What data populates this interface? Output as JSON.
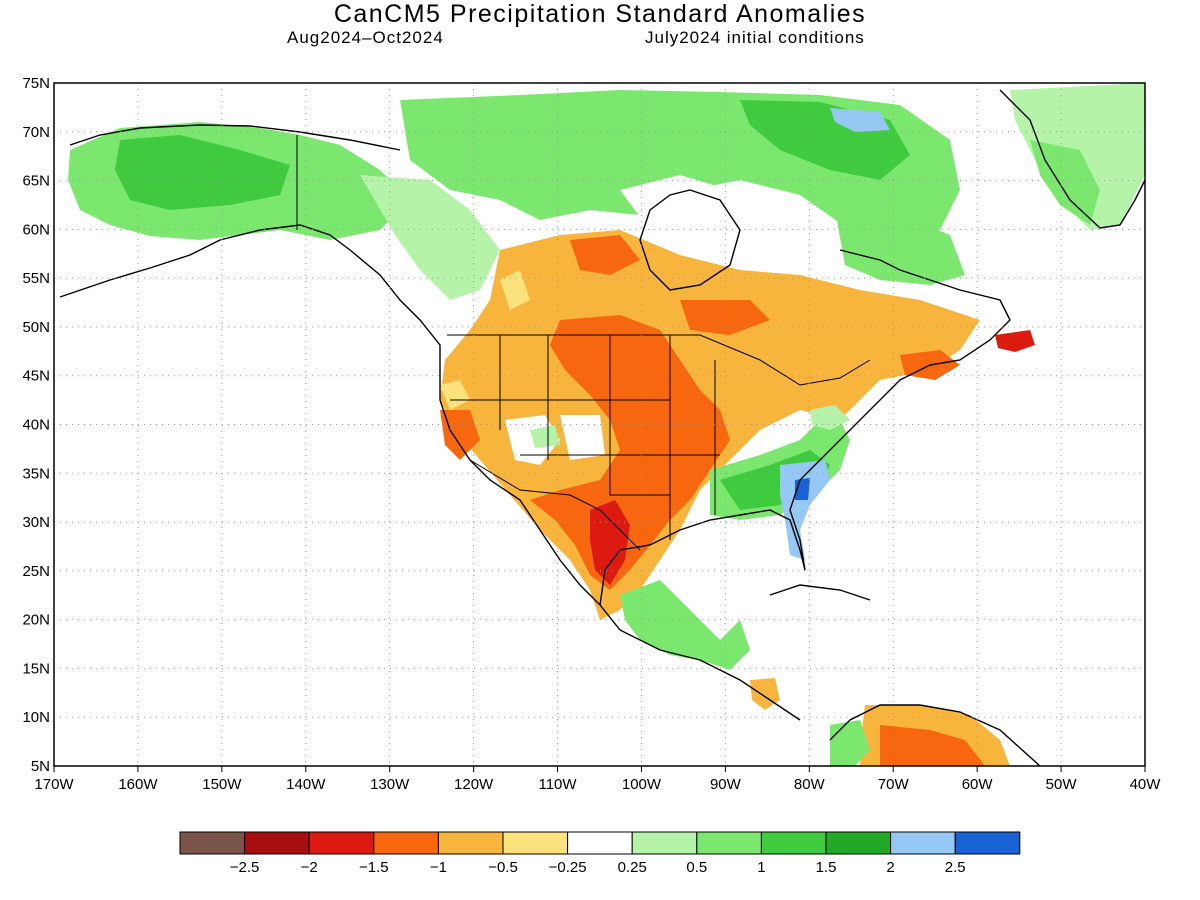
{
  "title": "CanCM5 Precipitation Standard Anomalies",
  "period": "Aug2024–Oct2024",
  "initial_conditions": "July2024 initial conditions",
  "map": {
    "projection": "lat-lon",
    "lon_range": [
      -170,
      -40
    ],
    "lat_range": [
      5,
      75
    ],
    "gridlines": "dotted",
    "lat_ticks": [
      "75N",
      "70N",
      "65N",
      "60N",
      "55N",
      "50N",
      "45N",
      "40N",
      "35N",
      "30N",
      "25N",
      "20N",
      "15N",
      "10N",
      "5N"
    ],
    "lon_ticks": [
      "170W",
      "160W",
      "150W",
      "140W",
      "130W",
      "120W",
      "110W",
      "100W",
      "90W",
      "80W",
      "70W",
      "60W",
      "50W",
      "40W"
    ]
  },
  "colorbar": {
    "colors": [
      "#7b5549",
      "#a50f0f",
      "#dc1a0f",
      "#f7670f",
      "#f8b53d",
      "#fbe27d",
      "#ffffff",
      "#b5f3a9",
      "#7be76f",
      "#3fca3f",
      "#22a928",
      "#95c9f3",
      "#1862d3"
    ],
    "labels": [
      "−2.5",
      "−2",
      "−1.5",
      "−1",
      "−0.5",
      "−0.25",
      "0.25",
      "0.5",
      "1",
      "1.5",
      "2",
      "2.5"
    ]
  },
  "regions": {
    "alaska": "wet",
    "canadian_arctic": "wet",
    "greenland": "wet",
    "canadian_prairies": "dry",
    "central_us": "dry",
    "texas_northern_mexico": "very dry",
    "southeast_us": "wet",
    "south_carolina_georgia_coast": "very wet",
    "newfoundland": "very dry",
    "northern_south_america": "dry"
  }
}
